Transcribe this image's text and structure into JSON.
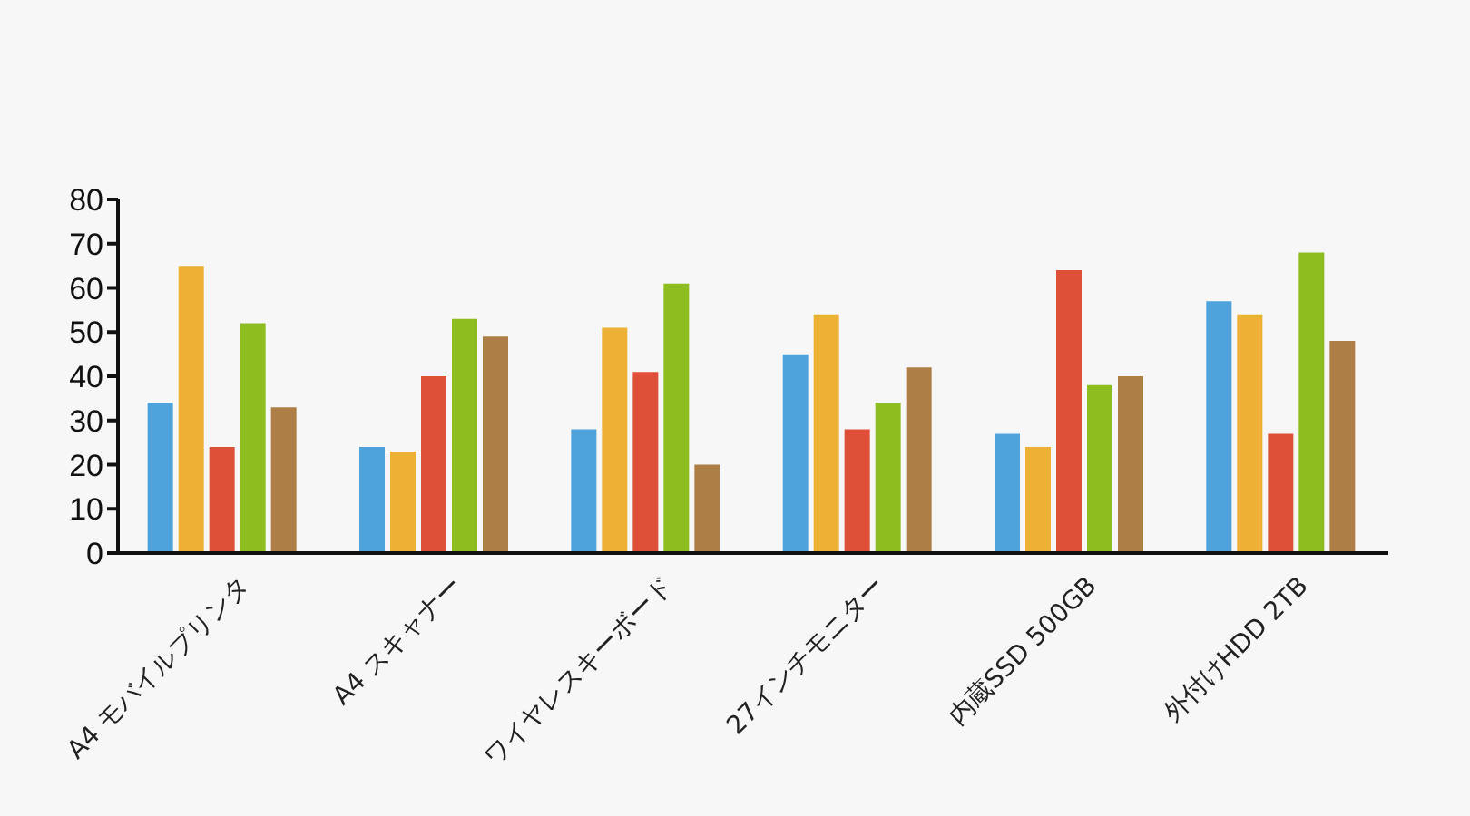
{
  "chart_data": {
    "type": "bar",
    "categories": [
      "A4 モバイルプリンタ",
      "A4 スキャナー",
      "ワイヤレスキーボード",
      "27インチモニター",
      "内蔵SSD 500GB",
      "外付けHDD 2TB"
    ],
    "series": [
      {
        "color": "#4fa3dd",
        "values": [
          34,
          24,
          28,
          45,
          27,
          57
        ]
      },
      {
        "color": "#ecb135",
        "values": [
          65,
          23,
          51,
          54,
          24,
          54
        ]
      },
      {
        "color": "#de5138",
        "values": [
          24,
          40,
          41,
          28,
          64,
          27
        ]
      },
      {
        "color": "#8ebd1f",
        "values": [
          52,
          53,
          61,
          34,
          38,
          68
        ]
      },
      {
        "color": "#ad7e45",
        "values": [
          33,
          49,
          20,
          42,
          40,
          48
        ]
      }
    ],
    "ylim": [
      0,
      80
    ],
    "yticks": [
      0,
      10,
      20,
      30,
      40,
      50,
      60,
      70,
      80
    ],
    "grid": false,
    "legend": false
  }
}
